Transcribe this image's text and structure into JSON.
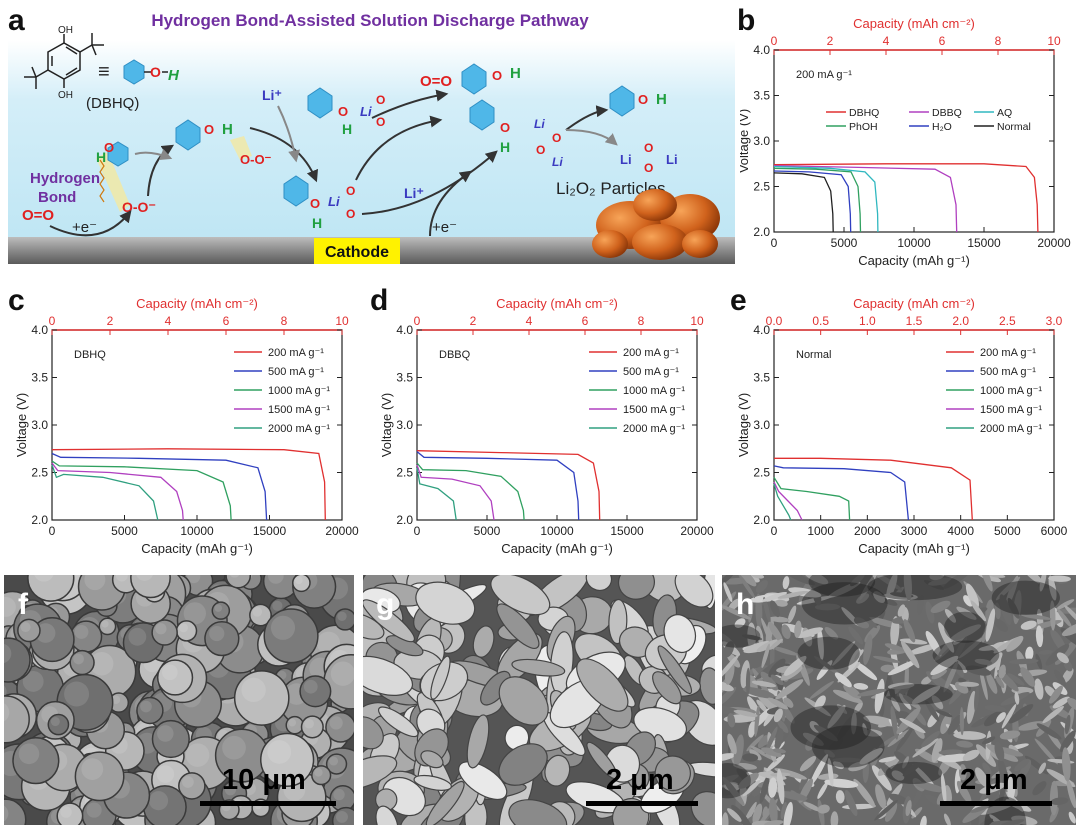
{
  "panel_letters": {
    "a": "a",
    "b": "b",
    "c": "c",
    "d": "d",
    "e": "e",
    "f": "f",
    "g": "g",
    "h": "h"
  },
  "scheme": {
    "title": "Hydrogen Bond-Assisted Solution Discharge Pathway",
    "dbhq_label": "(DBHQ)",
    "equiv": "≡",
    "hydrogen_bond_label_1": "Hydrogen",
    "hydrogen_bond_label_2": "Bond",
    "o2": "O=O",
    "electron": "+e⁻",
    "electron2": "+e⁻",
    "li_plus": "Li⁺",
    "li_plus2": "Li⁺",
    "cathode": "Cathode",
    "li2o2_label": "Li₂O₂ Particles",
    "oh": "O–H",
    "o_atom": "O",
    "h_atom": "H",
    "li_atom": "Li"
  },
  "chart_data": [
    {
      "panel": "b",
      "type": "line",
      "top_axis_label": "Capacity (mAh cm⁻²)",
      "xlabel": "Capacity (mAh g⁻¹)",
      "ylabel": "Voltage (V)",
      "annotation": "200 mA g⁻¹",
      "xlim": [
        0,
        20000
      ],
      "top_xlim": [
        0,
        10
      ],
      "ylim": [
        2.0,
        4.0
      ],
      "xticks": [
        0,
        5000,
        10000,
        15000,
        20000
      ],
      "top_xticks": [
        0,
        2,
        4,
        6,
        8,
        10
      ],
      "yticks": [
        2.0,
        2.5,
        3.0,
        3.5,
        4.0
      ],
      "legend_position": "center",
      "series": [
        {
          "name": "DBHQ",
          "color": "#e03030",
          "plateau": [
            [
              0,
              2.74
            ],
            [
              8000,
              2.75
            ],
            [
              15000,
              2.75
            ],
            [
              18000,
              2.72
            ],
            [
              18600,
              2.6
            ],
            [
              18800,
              2.3
            ],
            [
              18850,
              2.0
            ]
          ]
        },
        {
          "name": "DBBQ",
          "color": "#b040c0",
          "plateau": [
            [
              0,
              2.73
            ],
            [
              6000,
              2.71
            ],
            [
              11500,
              2.69
            ],
            [
              12600,
              2.6
            ],
            [
              13000,
              2.3
            ],
            [
              13050,
              2.0
            ]
          ]
        },
        {
          "name": "AQ",
          "color": "#30b8c0",
          "plateau": [
            [
              0,
              2.72
            ],
            [
              4000,
              2.7
            ],
            [
              6500,
              2.66
            ],
            [
              7200,
              2.55
            ],
            [
              7400,
              2.2
            ],
            [
              7420,
              2.0
            ]
          ]
        },
        {
          "name": "PhOH",
          "color": "#30a060",
          "plateau": [
            [
              0,
              2.7
            ],
            [
              3000,
              2.69
            ],
            [
              5500,
              2.66
            ],
            [
              6000,
              2.5
            ],
            [
              6150,
              2.2
            ],
            [
              6180,
              2.0
            ]
          ]
        },
        {
          "name": "H₂O",
          "color": "#3040c0",
          "plateau": [
            [
              0,
              2.67
            ],
            [
              2500,
              2.66
            ],
            [
              4800,
              2.63
            ],
            [
              5300,
              2.5
            ],
            [
              5450,
              2.2
            ],
            [
              5480,
              2.0
            ]
          ]
        },
        {
          "name": "Normal",
          "color": "#202020",
          "plateau": [
            [
              0,
              2.65
            ],
            [
              2000,
              2.64
            ],
            [
              3600,
              2.6
            ],
            [
              4050,
              2.45
            ],
            [
              4200,
              2.2
            ],
            [
              4230,
              2.0
            ]
          ]
        }
      ]
    },
    {
      "panel": "c",
      "type": "line",
      "top_axis_label": "Capacity (mAh cm⁻²)",
      "xlabel": "Capacity (mAh g⁻¹)",
      "ylabel": "Voltage (V)",
      "annotation": "DBHQ",
      "xlim": [
        0,
        20000
      ],
      "top_xlim": [
        0,
        10
      ],
      "ylim": [
        2.0,
        4.0
      ],
      "xticks": [
        0,
        5000,
        10000,
        15000,
        20000
      ],
      "top_xticks": [
        0,
        2,
        4,
        6,
        8,
        10
      ],
      "yticks": [
        2.0,
        2.5,
        3.0,
        3.5,
        4.0
      ],
      "legend_position": "top-right",
      "series": [
        {
          "name": "200 mA g⁻¹",
          "color": "#e03030",
          "plateau": [
            [
              0,
              2.74
            ],
            [
              8000,
              2.75
            ],
            [
              16000,
              2.74
            ],
            [
              18400,
              2.7
            ],
            [
              18800,
              2.4
            ],
            [
              18850,
              2.0
            ]
          ]
        },
        {
          "name": "500 mA g⁻¹",
          "color": "#3040c0",
          "plateau": [
            [
              0,
              2.7
            ],
            [
              600,
              2.66
            ],
            [
              6000,
              2.65
            ],
            [
              12000,
              2.63
            ],
            [
              14200,
              2.55
            ],
            [
              14700,
              2.3
            ],
            [
              14800,
              2.0
            ]
          ]
        },
        {
          "name": "1000 mA g⁻¹",
          "color": "#30a060",
          "plateau": [
            [
              0,
              2.62
            ],
            [
              500,
              2.57
            ],
            [
              5000,
              2.56
            ],
            [
              10000,
              2.52
            ],
            [
              11800,
              2.4
            ],
            [
              12300,
              2.15
            ],
            [
              12350,
              2.0
            ]
          ]
        },
        {
          "name": "1500 mA g⁻¹",
          "color": "#b040c0",
          "plateau": [
            [
              0,
              2.6
            ],
            [
              400,
              2.52
            ],
            [
              4000,
              2.5
            ],
            [
              7500,
              2.45
            ],
            [
              8600,
              2.3
            ],
            [
              9000,
              2.1
            ],
            [
              9050,
              2.0
            ]
          ]
        },
        {
          "name": "2000 mA g⁻¹",
          "color": "#30a080",
          "plateau": [
            [
              0,
              2.58
            ],
            [
              300,
              2.45
            ],
            [
              800,
              2.48
            ],
            [
              3500,
              2.45
            ],
            [
              6000,
              2.36
            ],
            [
              7000,
              2.2
            ],
            [
              7300,
              2.0
            ]
          ]
        }
      ]
    },
    {
      "panel": "d",
      "type": "line",
      "top_axis_label": "Capacity (mAh cm⁻²)",
      "xlabel": "Capacity (mAh g⁻¹)",
      "ylabel": "Voltage (V)",
      "annotation": "DBBQ",
      "xlim": [
        0,
        20000
      ],
      "top_xlim": [
        0,
        10
      ],
      "ylim": [
        2.0,
        4.0
      ],
      "xticks": [
        0,
        5000,
        10000,
        15000,
        20000
      ],
      "top_xticks": [
        0,
        2,
        4,
        6,
        8,
        10
      ],
      "yticks": [
        2.0,
        2.5,
        3.0,
        3.5,
        4.0
      ],
      "legend_position": "top-right",
      "series": [
        {
          "name": "200 mA g⁻¹",
          "color": "#e03030",
          "plateau": [
            [
              0,
              2.73
            ],
            [
              6000,
              2.71
            ],
            [
              11500,
              2.69
            ],
            [
              12600,
              2.6
            ],
            [
              13000,
              2.3
            ],
            [
              13050,
              2.0
            ]
          ]
        },
        {
          "name": "500 mA g⁻¹",
          "color": "#3040c0",
          "plateau": [
            [
              0,
              2.72
            ],
            [
              500,
              2.66
            ],
            [
              5000,
              2.65
            ],
            [
              10000,
              2.63
            ],
            [
              11200,
              2.5
            ],
            [
              11500,
              2.2
            ],
            [
              11550,
              2.0
            ]
          ]
        },
        {
          "name": "1000 mA g⁻¹",
          "color": "#30a060",
          "plateau": [
            [
              0,
              2.6
            ],
            [
              400,
              2.53
            ],
            [
              3500,
              2.52
            ],
            [
              6000,
              2.46
            ],
            [
              7200,
              2.3
            ],
            [
              7600,
              2.1
            ],
            [
              7650,
              2.0
            ]
          ]
        },
        {
          "name": "1500 mA g⁻¹",
          "color": "#b040c0",
          "plateau": [
            [
              0,
              2.58
            ],
            [
              300,
              2.45
            ],
            [
              2500,
              2.43
            ],
            [
              4500,
              2.36
            ],
            [
              5300,
              2.2
            ],
            [
              5500,
              2.0
            ]
          ]
        },
        {
          "name": "2000 mA g⁻¹",
          "color": "#30a080",
          "plateau": [
            [
              0,
              2.55
            ],
            [
              200,
              2.38
            ],
            [
              1500,
              2.33
            ],
            [
              2600,
              2.2
            ],
            [
              2800,
              2.0
            ]
          ]
        }
      ]
    },
    {
      "panel": "e",
      "type": "line",
      "top_axis_label": "Capacity (mAh cm⁻²)",
      "xlabel": "Capacity (mAh g⁻¹)",
      "ylabel": "Voltage (V)",
      "annotation": "Normal",
      "xlim": [
        0,
        6000
      ],
      "top_xlim": [
        0,
        3.0
      ],
      "ylim": [
        2.0,
        4.0
      ],
      "xticks": [
        0,
        1000,
        2000,
        3000,
        4000,
        5000,
        6000
      ],
      "top_xticks": [
        0.0,
        0.5,
        1.0,
        1.5,
        2.0,
        2.5,
        3.0
      ],
      "yticks": [
        2.0,
        2.5,
        3.0,
        3.5,
        4.0
      ],
      "legend_position": "top-right",
      "series": [
        {
          "name": "200 mA g⁻¹",
          "color": "#e03030",
          "plateau": [
            [
              0,
              2.65
            ],
            [
              1000,
              2.65
            ],
            [
              2500,
              2.63
            ],
            [
              3800,
              2.55
            ],
            [
              4200,
              2.42
            ],
            [
              4250,
              2.0
            ]
          ]
        },
        {
          "name": "500 mA g⁻¹",
          "color": "#3040c0",
          "plateau": [
            [
              0,
              2.57
            ],
            [
              200,
              2.55
            ],
            [
              1500,
              2.54
            ],
            [
              2500,
              2.5
            ],
            [
              2800,
              2.4
            ],
            [
              2880,
              2.0
            ]
          ]
        },
        {
          "name": "1000 mA g⁻¹",
          "color": "#30a060",
          "plateau": [
            [
              0,
              2.45
            ],
            [
              150,
              2.33
            ],
            [
              700,
              2.3
            ],
            [
              1400,
              2.25
            ],
            [
              1600,
              2.2
            ],
            [
              1620,
              2.0
            ]
          ]
        },
        {
          "name": "1500 mA g⁻¹",
          "color": "#b040c0",
          "plateau": [
            [
              0,
              2.4
            ],
            [
              100,
              2.3
            ],
            [
              300,
              2.2
            ],
            [
              500,
              2.1
            ],
            [
              600,
              2.0
            ]
          ]
        },
        {
          "name": "2000 mA g⁻¹",
          "color": "#30a080",
          "plateau": [
            [
              0,
              2.38
            ],
            [
              80,
              2.25
            ],
            [
              200,
              2.15
            ],
            [
              320,
              2.05
            ],
            [
              360,
              2.0
            ]
          ]
        }
      ]
    }
  ],
  "sem": [
    {
      "panel": "f",
      "scale": "10 μm"
    },
    {
      "panel": "g",
      "scale": "2 μm"
    },
    {
      "panel": "h",
      "scale": "2 μm"
    }
  ]
}
